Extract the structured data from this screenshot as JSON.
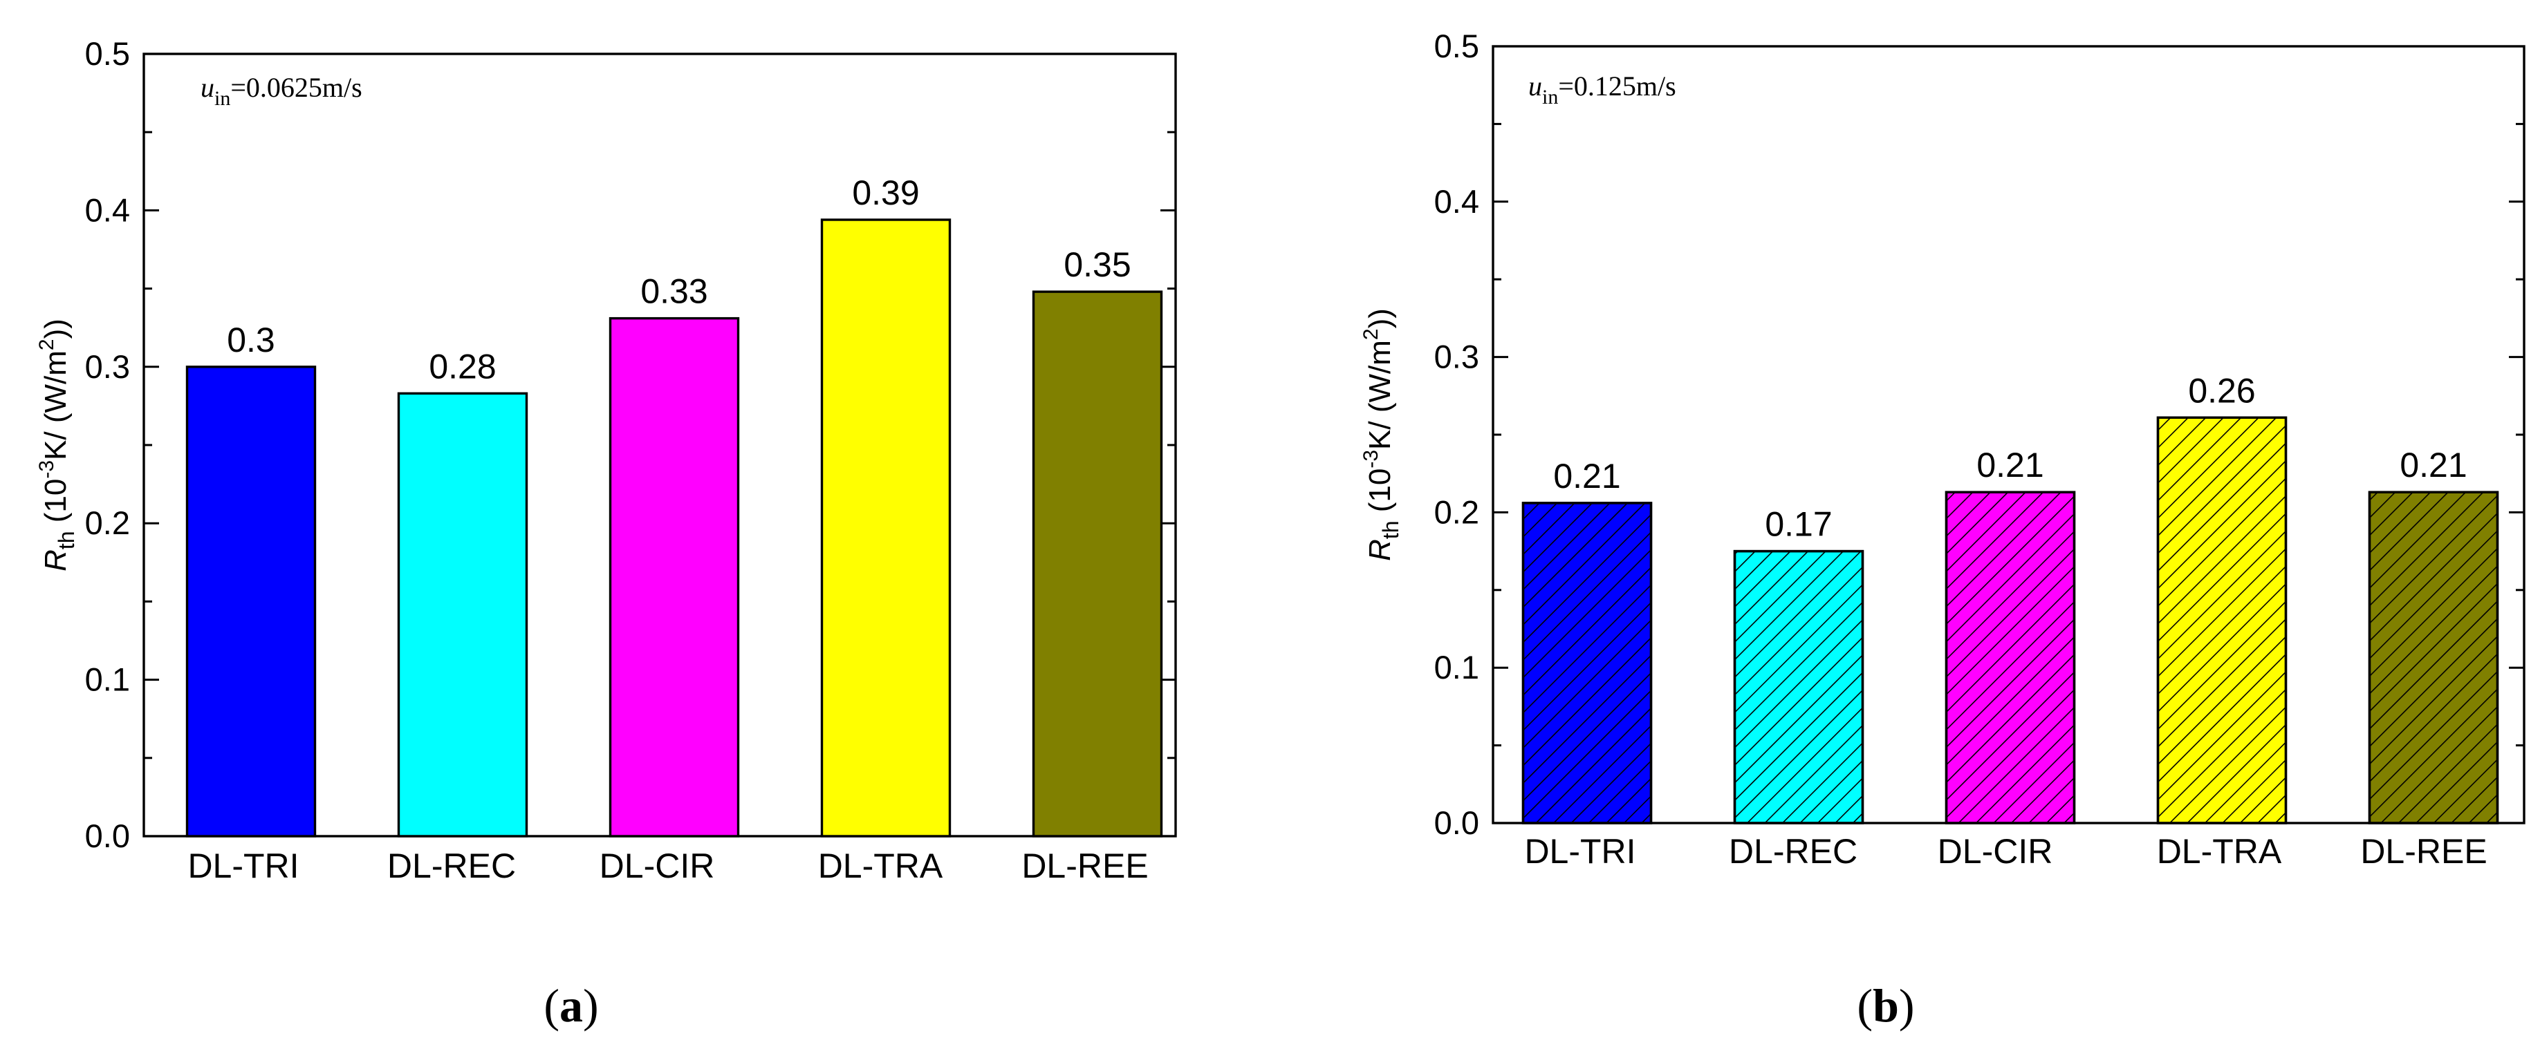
{
  "chart_data": [
    {
      "type": "bar",
      "panel_caption_open": "(",
      "panel_caption_letter": "a",
      "panel_caption_close": ")",
      "annotation_var": "u",
      "annotation_sub": "in",
      "annotation_rest": "=0.0625m/s",
      "ylabel_main": "R",
      "ylabel_sub": "th",
      "ylabel_unit_prefix": " (10",
      "ylabel_unit_exp": "-3",
      "ylabel_unit_mid": "K/ (W/m",
      "ylabel_unit_exp2": "2",
      "ylabel_unit_suffix": "))",
      "xlabel": "",
      "ylim": [
        0.0,
        0.5
      ],
      "yticks": [
        "0.0",
        "0.1",
        "0.2",
        "0.3",
        "0.4",
        "0.5"
      ],
      "categories": [
        "DL-TRI",
        "DL-REC",
        "DL-CIR",
        "DL-TRA",
        "DL-REE"
      ],
      "values": [
        0.3,
        0.283,
        0.331,
        0.394,
        0.348
      ],
      "value_labels": [
        "0.3",
        "0.28",
        "0.33",
        "0.39",
        "0.35"
      ],
      "colors": [
        "#0000ff",
        "#00ffff",
        "#ff00ff",
        "#ffff00",
        "#808000"
      ],
      "hatched": false
    },
    {
      "type": "bar",
      "panel_caption_open": "(",
      "panel_caption_letter": "b",
      "panel_caption_close": ")",
      "annotation_var": "u",
      "annotation_sub": "in",
      "annotation_rest": "=0.125m/s",
      "ylabel_main": "R",
      "ylabel_sub": "th",
      "ylabel_unit_prefix": " (10",
      "ylabel_unit_exp": "-3",
      "ylabel_unit_mid": "K/ (W/m",
      "ylabel_unit_exp2": "2",
      "ylabel_unit_suffix": "))",
      "xlabel": "",
      "ylim": [
        0.0,
        0.5
      ],
      "yticks": [
        "0.0",
        "0.1",
        "0.2",
        "0.3",
        "0.4",
        "0.5"
      ],
      "categories": [
        "DL-TRI",
        "DL-REC",
        "DL-CIR",
        "DL-TRA",
        "DL-REE"
      ],
      "values": [
        0.206,
        0.175,
        0.213,
        0.261,
        0.213
      ],
      "value_labels": [
        "0.21",
        "0.17",
        "0.21",
        "0.26",
        "0.21"
      ],
      "colors": [
        "#0000ff",
        "#00ffff",
        "#ff00ff",
        "#ffff00",
        "#808000"
      ],
      "hatched": true
    }
  ]
}
